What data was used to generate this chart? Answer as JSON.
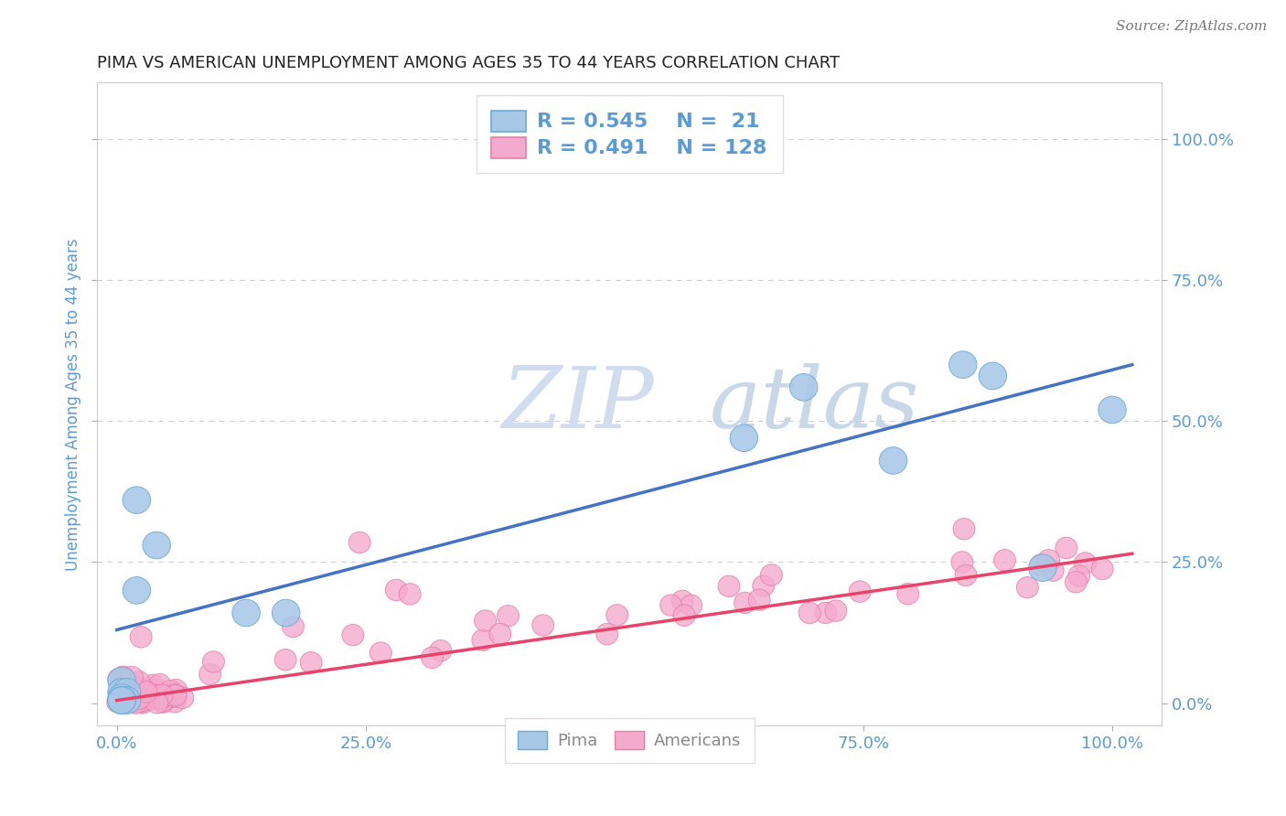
{
  "title": "PIMA VS AMERICAN UNEMPLOYMENT AMONG AGES 35 TO 44 YEARS CORRELATION CHART",
  "source": "Source: ZipAtlas.com",
  "ylabel": "Unemployment Among Ages 35 to 44 years",
  "x_ticks": [
    0.0,
    0.25,
    0.5,
    0.75,
    1.0
  ],
  "x_tick_labels": [
    "0.0%",
    "25.0%",
    "50.0%",
    "75.0%",
    "100.0%"
  ],
  "y_ticks": [
    0.0,
    0.25,
    0.5,
    0.75,
    1.0
  ],
  "y_tick_labels": [
    "0.0%",
    "25.0%",
    "50.0%",
    "75.0%",
    "100.0%"
  ],
  "xlim": [
    -0.02,
    1.05
  ],
  "ylim": [
    -0.04,
    1.1
  ],
  "pima_color": "#A8C8E8",
  "pima_edge_color": "#6BAAD8",
  "americans_color": "#F4AACC",
  "americans_edge_color": "#E87DAA",
  "pima_R": 0.545,
  "pima_N": 21,
  "americans_R": 0.491,
  "americans_N": 128,
  "pima_line_color": "#4472C4",
  "americans_line_color": "#E8436A",
  "grid_color": "#CCCCCC",
  "background_color": "#FFFFFF",
  "title_color": "#222222",
  "axis_label_color": "#5B9BD5",
  "tick_label_color": "#5B9BD5",
  "legend_text_color": "#5B9BD5",
  "watermark_zip": "ZIP",
  "watermark_atlas": "atlas",
  "watermark_color_zip": "#D0DCF0",
  "watermark_color_atlas": "#C8D8E8",
  "pima_line_x0": 0.0,
  "pima_line_x1": 1.02,
  "pima_line_y0": 0.13,
  "pima_line_y1": 0.6,
  "americans_line_x0": 0.0,
  "americans_line_x1": 1.02,
  "americans_line_y0": 0.005,
  "americans_line_y1": 0.265,
  "pima_x": [
    0.02,
    0.04,
    0.02,
    0.005,
    0.005,
    0.01,
    0.005,
    0.005,
    0.005,
    0.01,
    0.005,
    0.005,
    0.13,
    0.17,
    0.63,
    0.69,
    0.78,
    0.85,
    0.88,
    0.93,
    1.0
  ],
  "pima_y": [
    0.36,
    0.28,
    0.2,
    0.04,
    0.02,
    0.02,
    0.01,
    0.005,
    0.005,
    0.005,
    0.005,
    0.005,
    0.16,
    0.16,
    0.47,
    0.56,
    0.43,
    0.6,
    0.58,
    0.24,
    0.52
  ],
  "am_seed": 42
}
